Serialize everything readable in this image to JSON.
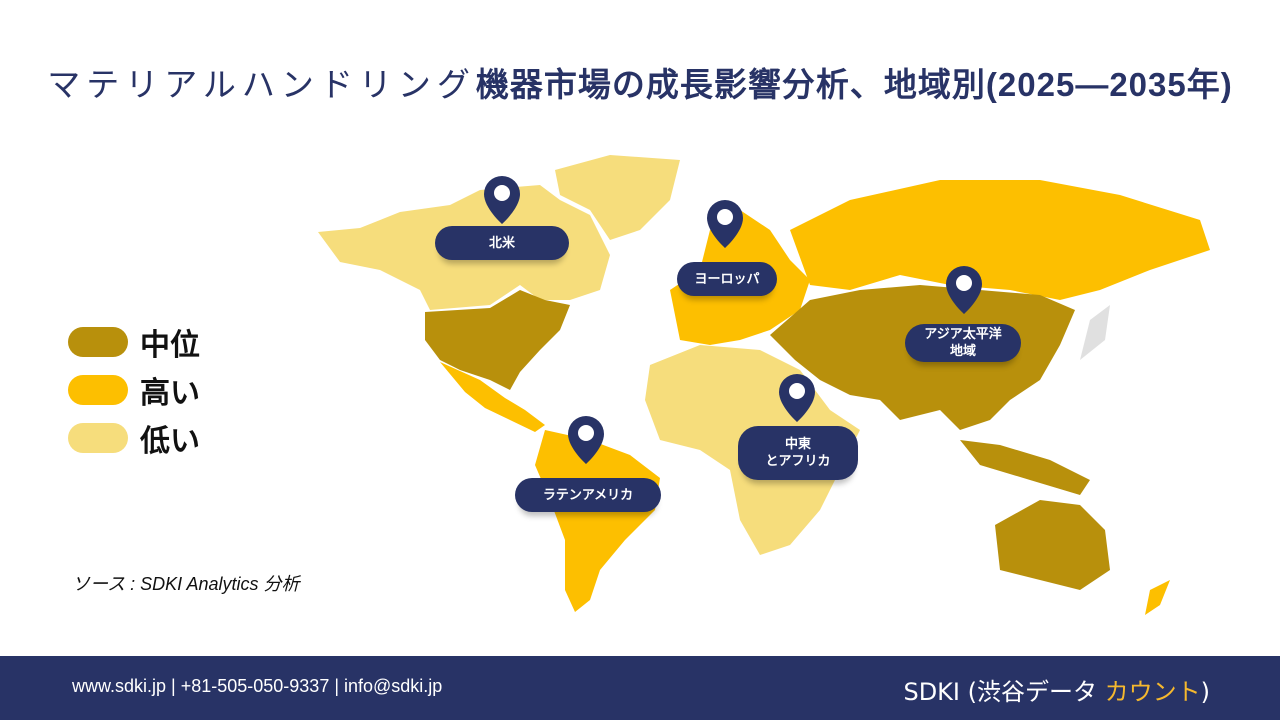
{
  "title": {
    "part_light": "マテリアルハンドリング",
    "part_bold": "機器市場の成長影響分析、地域別(2025—2035年)"
  },
  "colors": {
    "mid": "#B8900C",
    "high": "#FDBF00",
    "low": "#F6DD7C",
    "navy": "#283366"
  },
  "legend": [
    {
      "label": "中位",
      "level": "mid"
    },
    {
      "label": "高い",
      "level": "high"
    },
    {
      "label": "低い",
      "level": "low"
    }
  ],
  "regions": {
    "north_america": {
      "label": "北米",
      "level": "low"
    },
    "europe": {
      "label": "ヨーロッパ",
      "level": "high"
    },
    "asia_pacific": {
      "label": "アジア太平洋\n地域",
      "level": "mid"
    },
    "middle_east_africa": {
      "label": "中東\nとアフリカ",
      "level": "low"
    },
    "latin_america": {
      "label": "ラテンアメリカ",
      "level": "high"
    }
  },
  "source": "ソース : SDKI Analytics 分析",
  "footer": {
    "contact": "www.sdki.jp | +81-505-050-9337 | info@sdki.jp",
    "brand_main": "SDKI (渋谷データ ",
    "brand_accent": "カウント",
    "brand_end": ")"
  }
}
